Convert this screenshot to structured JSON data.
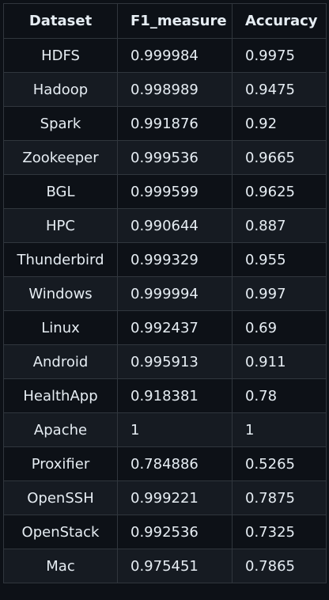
{
  "table": {
    "headers": [
      "Dataset",
      "F1_measure",
      "Accuracy"
    ],
    "rows": [
      {
        "dataset": "HDFS",
        "f1": "0.999984",
        "accuracy": "0.9975"
      },
      {
        "dataset": "Hadoop",
        "f1": "0.998989",
        "accuracy": "0.9475"
      },
      {
        "dataset": "Spark",
        "f1": "0.991876",
        "accuracy": "0.92"
      },
      {
        "dataset": "Zookeeper",
        "f1": "0.999536",
        "accuracy": "0.9665"
      },
      {
        "dataset": "BGL",
        "f1": "0.999599",
        "accuracy": "0.9625"
      },
      {
        "dataset": "HPC",
        "f1": "0.990644",
        "accuracy": "0.887"
      },
      {
        "dataset": "Thunderbird",
        "f1": "0.999329",
        "accuracy": "0.955"
      },
      {
        "dataset": "Windows",
        "f1": "0.999994",
        "accuracy": "0.997"
      },
      {
        "dataset": "Linux",
        "f1": "0.992437",
        "accuracy": "0.69"
      },
      {
        "dataset": "Android",
        "f1": "0.995913",
        "accuracy": "0.911"
      },
      {
        "dataset": "HealthApp",
        "f1": "0.918381",
        "accuracy": "0.78"
      },
      {
        "dataset": "Apache",
        "f1": "1",
        "accuracy": "1"
      },
      {
        "dataset": "Proxifier",
        "f1": "0.784886",
        "accuracy": "0.5265"
      },
      {
        "dataset": "OpenSSH",
        "f1": "0.999221",
        "accuracy": "0.7875"
      },
      {
        "dataset": "OpenStack",
        "f1": "0.992536",
        "accuracy": "0.7325"
      },
      {
        "dataset": "Mac",
        "f1": "0.975451",
        "accuracy": "0.7865"
      }
    ]
  },
  "colors": {
    "background": "#0d1117",
    "row_alt": "#161b22",
    "border": "#30363d",
    "text": "#e6edf3"
  }
}
